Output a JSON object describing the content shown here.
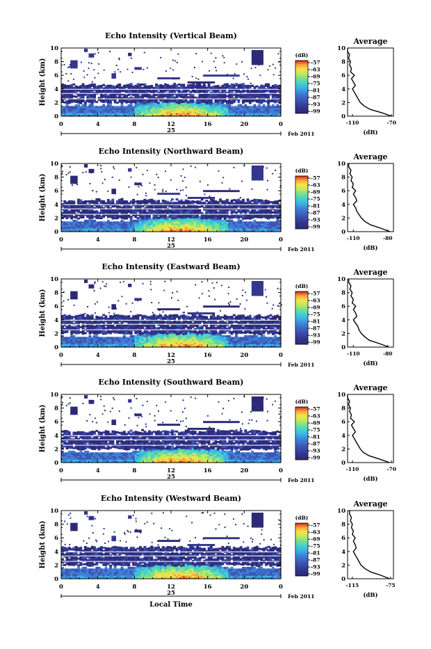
{
  "chart_data": [
    {
      "type": "heatmap",
      "title": "Echo Intensity (Vertical Beam)",
      "ylabel": "Height (km)",
      "xlabel": "",
      "date_label": "25",
      "month_label": "Feb 2011",
      "x_ticks": [
        "0",
        "4",
        "8",
        "12",
        "16",
        "20",
        "0"
      ],
      "y_ticks": [
        "0",
        "2",
        "4",
        "6",
        "8",
        "10"
      ],
      "xlim": [
        0,
        24
      ],
      "ylim": [
        0,
        10
      ],
      "colorbar": {
        "unit": "(dB)",
        "ticks": [
          "-57",
          "-63",
          "-69",
          "-75",
          "-81",
          "-87",
          "-93",
          "-99"
        ]
      },
      "average": {
        "title": "Average",
        "xlabel": "(dB)",
        "xticks": [
          "-110",
          "-70"
        ],
        "xlim": [
          -115,
          -68
        ],
        "heights": [
          0,
          0.5,
          1,
          1.5,
          2,
          2.5,
          3,
          3.5,
          4,
          4.5,
          5,
          5.5,
          6,
          6.5,
          7,
          7.5,
          8,
          8.5,
          9,
          9.5,
          10
        ],
        "values": [
          -70,
          -80,
          -92,
          -98,
          -102,
          -104,
          -106,
          -108,
          -110,
          -107,
          -109,
          -111,
          -108,
          -112,
          -111,
          -113,
          -112,
          -114,
          -113,
          -115,
          -115
        ]
      }
    },
    {
      "type": "heatmap",
      "title": "Echo Intensity (Northward Beam)",
      "ylabel": "Height (km)",
      "xlabel": "",
      "date_label": "25",
      "month_label": "Feb 2011",
      "x_ticks": [
        "0",
        "4",
        "8",
        "12",
        "16",
        "20",
        "0"
      ],
      "y_ticks": [
        "0",
        "2",
        "4",
        "6",
        "8",
        "10"
      ],
      "xlim": [
        0,
        24
      ],
      "ylim": [
        0,
        10
      ],
      "colorbar": {
        "unit": "(dB)",
        "ticks": [
          "-57",
          "-63",
          "-69",
          "-75",
          "-81",
          "-87",
          "-93",
          "-99"
        ]
      },
      "average": {
        "title": "Average",
        "xlabel": "(dB)",
        "xticks": [
          "-110",
          "-80"
        ],
        "xlim": [
          -115,
          -75
        ],
        "heights": [
          0,
          0.5,
          1,
          1.5,
          2,
          2.5,
          3,
          3.5,
          4,
          4.5,
          5,
          5.5,
          6,
          6.5,
          7,
          7.5,
          8,
          8.5,
          9,
          9.5,
          10
        ],
        "values": [
          -78,
          -86,
          -95,
          -100,
          -103,
          -105,
          -107,
          -108,
          -110,
          -107,
          -108,
          -110,
          -108,
          -111,
          -110,
          -112,
          -111,
          -113,
          -112,
          -114,
          -114
        ]
      }
    },
    {
      "type": "heatmap",
      "title": "Echo Intensity (Eastward Beam)",
      "ylabel": "Height (km)",
      "xlabel": "",
      "date_label": "25",
      "month_label": "Feb 2011",
      "x_ticks": [
        "0",
        "4",
        "8",
        "12",
        "16",
        "20",
        "0"
      ],
      "y_ticks": [
        "0",
        "2",
        "4",
        "6",
        "8",
        "10"
      ],
      "xlim": [
        0,
        24
      ],
      "ylim": [
        0,
        10
      ],
      "colorbar": {
        "unit": "(dB)",
        "ticks": [
          "-57",
          "-63",
          "-69",
          "-75",
          "-81",
          "-87",
          "-93",
          "-99"
        ]
      },
      "average": {
        "title": "Average",
        "xlabel": "(dB)",
        "xticks": [
          "-110",
          "-80"
        ],
        "xlim": [
          -115,
          -75
        ],
        "heights": [
          0,
          0.5,
          1,
          1.5,
          2,
          2.5,
          3,
          3.5,
          4,
          4.5,
          5,
          5.5,
          6,
          6.5,
          7,
          7.5,
          8,
          8.5,
          9,
          9.5,
          10
        ],
        "values": [
          -79,
          -87,
          -96,
          -100,
          -103,
          -105,
          -106,
          -108,
          -110,
          -107,
          -108,
          -110,
          -108,
          -111,
          -110,
          -112,
          -111,
          -113,
          -112,
          -114,
          -114
        ]
      }
    },
    {
      "type": "heatmap",
      "title": "Echo Intensity (Southward Beam)",
      "ylabel": "Height (km)",
      "xlabel": "",
      "date_label": "25",
      "month_label": "Feb 2011",
      "x_ticks": [
        "0",
        "4",
        "8",
        "12",
        "16",
        "20",
        "0"
      ],
      "y_ticks": [
        "0",
        "2",
        "4",
        "6",
        "8",
        "10"
      ],
      "xlim": [
        0,
        24
      ],
      "ylim": [
        0,
        10
      ],
      "colorbar": {
        "unit": "(dB)",
        "ticks": [
          "-57",
          "-63",
          "-69",
          "-75",
          "-81",
          "-87",
          "-93",
          "-99"
        ]
      },
      "average": {
        "title": "Average",
        "xlabel": "(dB)",
        "xticks": [
          "-110",
          "-70"
        ],
        "xlim": [
          -115,
          -68
        ],
        "heights": [
          0,
          0.5,
          1,
          1.5,
          2,
          2.5,
          3,
          3.5,
          4,
          4.5,
          5,
          5.5,
          6,
          6.5,
          7,
          7.5,
          8,
          8.5,
          9,
          9.5,
          10
        ],
        "values": [
          -72,
          -82,
          -93,
          -99,
          -102,
          -104,
          -106,
          -108,
          -110,
          -107,
          -109,
          -111,
          -108,
          -112,
          -111,
          -113,
          -112,
          -114,
          -113,
          -115,
          -115
        ]
      }
    },
    {
      "type": "heatmap",
      "title": "Echo Intensity (Westward Beam)",
      "ylabel": "Height (km)",
      "xlabel": "Local Time",
      "date_label": "25",
      "month_label": "Feb 2011",
      "x_ticks": [
        "0",
        "4",
        "8",
        "12",
        "16",
        "20",
        "0"
      ],
      "y_ticks": [
        "0",
        "2",
        "4",
        "6",
        "8",
        "10"
      ],
      "xlim": [
        0,
        24
      ],
      "ylim": [
        0,
        10
      ],
      "colorbar": {
        "unit": "(dB)",
        "ticks": [
          "-57",
          "-63",
          "-69",
          "-75",
          "-81",
          "-87",
          "-93",
          "-99"
        ]
      },
      "average": {
        "title": "Average",
        "xlabel": "(dB)",
        "xticks": [
          "-115",
          "-75"
        ],
        "xlim": [
          -120,
          -72
        ],
        "heights": [
          0,
          0.5,
          1,
          1.5,
          2,
          2.5,
          3,
          3.5,
          4,
          4.5,
          5,
          5.5,
          6,
          6.5,
          7,
          7.5,
          8,
          8.5,
          9,
          9.5,
          10
        ],
        "values": [
          -76,
          -85,
          -96,
          -102,
          -106,
          -108,
          -110,
          -112,
          -114,
          -111,
          -112,
          -114,
          -112,
          -115,
          -114,
          -116,
          -115,
          -117,
          -116,
          -118,
          -118
        ]
      }
    }
  ],
  "colors": {
    "scale": [
      "#2c2a78",
      "#34378e",
      "#3c56b4",
      "#3f7fd4",
      "#3ab3e6",
      "#48d4c8",
      "#7ee08a",
      "#c8e85a",
      "#f7e04a",
      "#f7a538",
      "#ef4f2a",
      "#d0201e"
    ]
  }
}
